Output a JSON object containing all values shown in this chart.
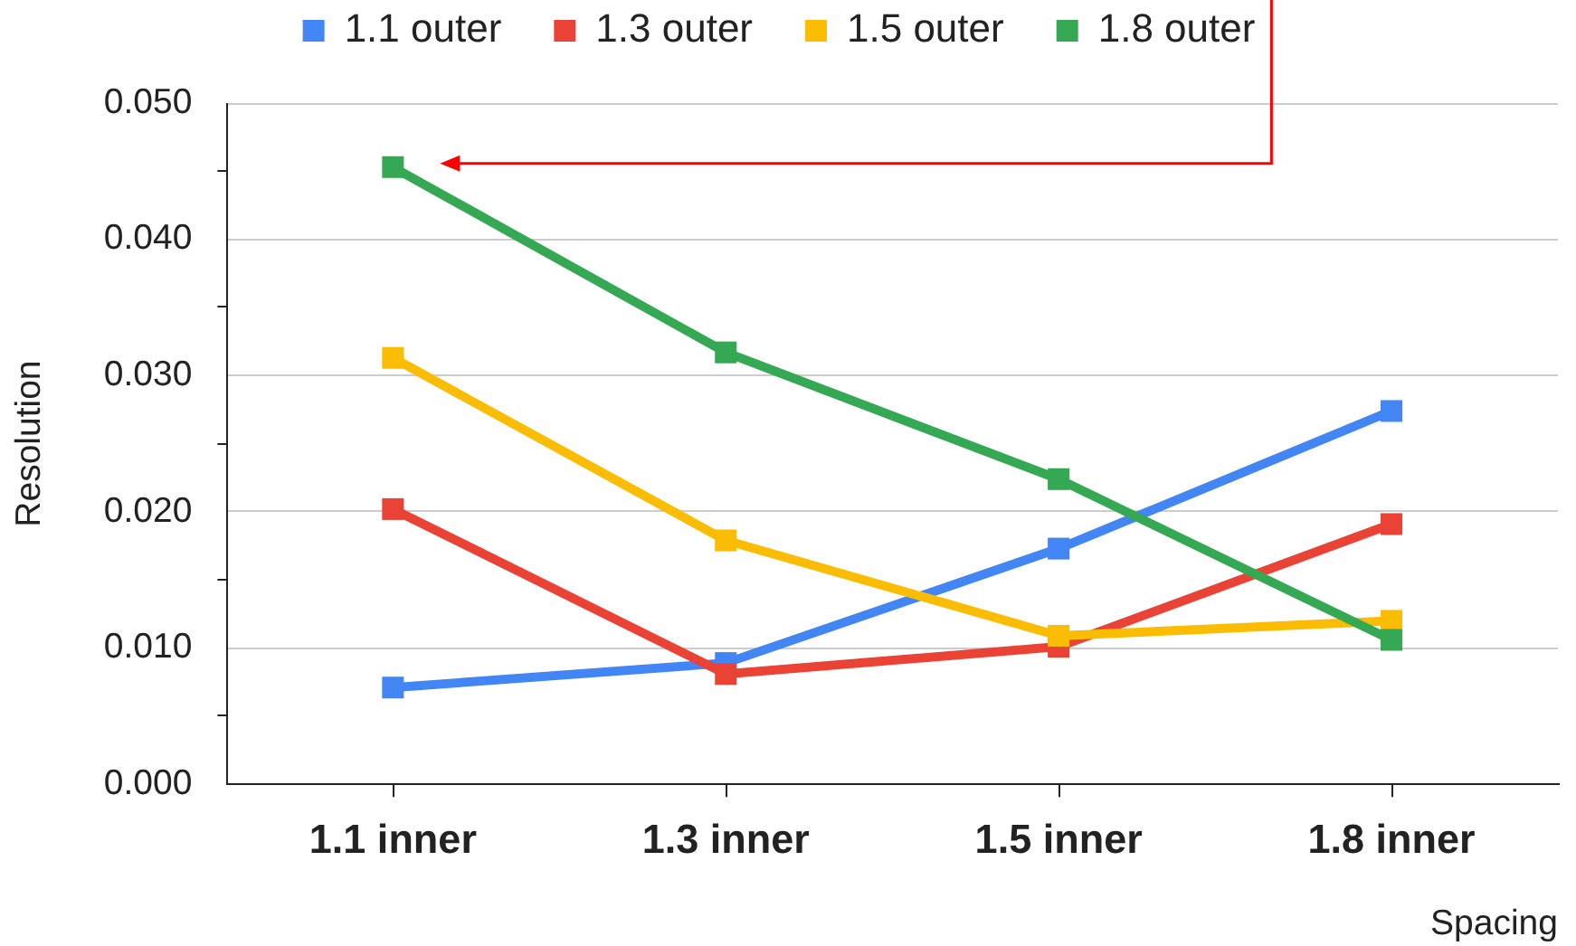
{
  "chart_data": {
    "type": "line",
    "categories": [
      "1.1 inner",
      "1.3 inner",
      "1.5 inner",
      "1.8 inner"
    ],
    "series": [
      {
        "name": "1.1 outer",
        "color": "#4285f4",
        "values": [
          0.0071,
          0.0089,
          0.0173,
          0.0274
        ]
      },
      {
        "name": "1.3 outer",
        "color": "#ea4335",
        "values": [
          0.0202,
          0.0081,
          0.0101,
          0.0191
        ]
      },
      {
        "name": "1.5 outer",
        "color": "#fbbc04",
        "values": [
          0.0313,
          0.0179,
          0.0109,
          0.012
        ]
      },
      {
        "name": "1.8 outer",
        "color": "#34a853",
        "values": [
          0.0453,
          0.0317,
          0.0224,
          0.0106
        ]
      }
    ],
    "xlabel": "Spacing",
    "ylabel": "Resolution",
    "ylim": [
      0,
      0.05
    ],
    "yticks": [
      {
        "value": 0,
        "label": "0.000"
      },
      {
        "value": 0.005,
        "label": null
      },
      {
        "value": 0.01,
        "label": "0.010"
      },
      {
        "value": 0.015,
        "label": null
      },
      {
        "value": 0.02,
        "label": "0.020"
      },
      {
        "value": 0.025,
        "label": null
      },
      {
        "value": 0.03,
        "label": "0.030"
      },
      {
        "value": 0.035,
        "label": null
      },
      {
        "value": 0.04,
        "label": "0.040"
      },
      {
        "value": 0.045,
        "label": null
      },
      {
        "value": 0.05,
        "label": "0.050"
      }
    ],
    "grid": "y",
    "legend": "top",
    "marker": "square",
    "line_style": "solid"
  }
}
